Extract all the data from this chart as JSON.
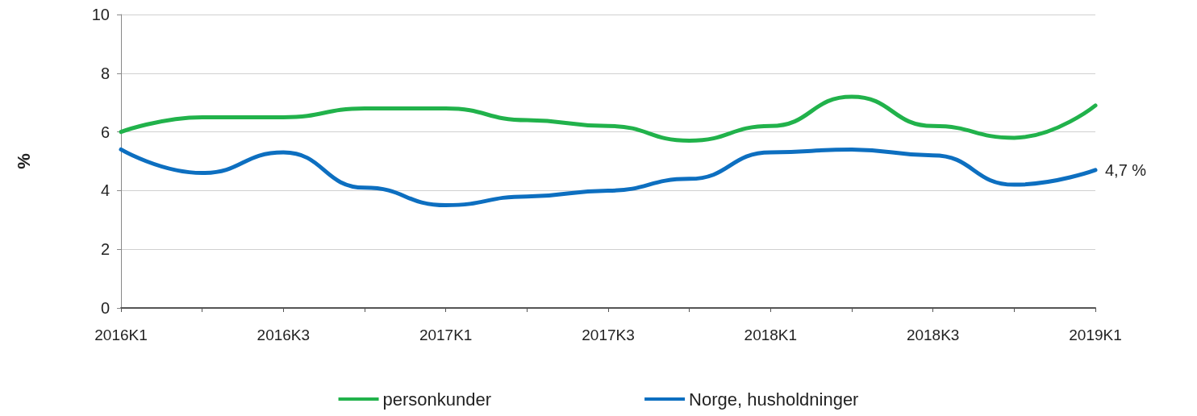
{
  "chart_data": {
    "type": "line",
    "ylabel": "%",
    "categories": [
      "2016K1",
      null,
      "2016K3",
      null,
      "2017K1",
      null,
      "2017K3",
      null,
      "2018K1",
      null,
      "2018K3",
      null,
      "2019K1"
    ],
    "series": [
      {
        "name": "personkunder",
        "color": "#21b24b",
        "values": [
          6.0,
          6.5,
          6.5,
          6.8,
          6.8,
          6.4,
          6.2,
          5.7,
          6.2,
          7.2,
          6.2,
          5.8,
          6.9
        ]
      },
      {
        "name": "Norge, husholdninger",
        "color": "#0d6fc0",
        "values": [
          5.4,
          4.6,
          5.3,
          4.1,
          3.5,
          3.8,
          4.0,
          4.4,
          5.3,
          5.4,
          5.2,
          4.2,
          4.7
        ],
        "value_labels": [
          null,
          null,
          null,
          null,
          null,
          null,
          null,
          null,
          null,
          null,
          null,
          null,
          "4,7 %"
        ]
      }
    ],
    "ylim": [
      0,
      10
    ],
    "yticks": [
      0,
      2,
      4,
      6,
      8,
      10
    ],
    "grid": "y",
    "legend": "bottom",
    "marker": "none",
    "line_style": "solid"
  }
}
